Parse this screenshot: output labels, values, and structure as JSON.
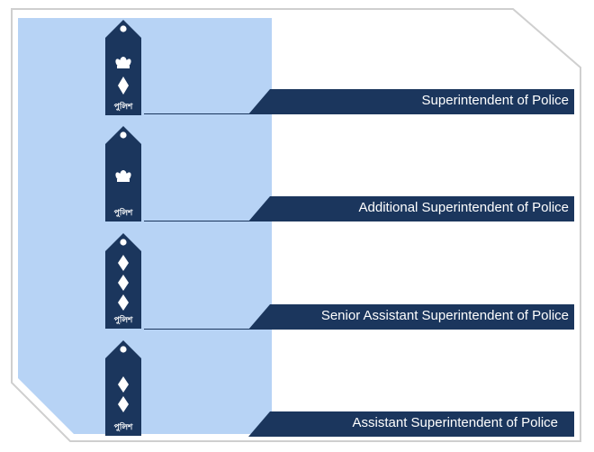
{
  "colors": {
    "panel_blue": "#b7d3f5",
    "navy": "#1b365d",
    "insignia_white": "#ffffff",
    "frame_border": "#d7d7d7"
  },
  "ranks": [
    {
      "label": "Superintendent of Police",
      "insignia": [
        "lotus-icon",
        "star-icon"
      ],
      "emblem_text": "পুলিশ"
    },
    {
      "label": "Additional Superintendent of Police",
      "insignia": [
        "lotus-icon"
      ],
      "emblem_text": "পুলিশ"
    },
    {
      "label": "Senior Assistant Superintendent of Police",
      "insignia": [
        "star-icon",
        "star-icon",
        "star-icon"
      ],
      "emblem_text": "পুলিশ"
    },
    {
      "label": "Assistant Superintendent of Police",
      "insignia": [
        "star-icon",
        "star-icon"
      ],
      "emblem_text": "পুলিশ"
    }
  ]
}
